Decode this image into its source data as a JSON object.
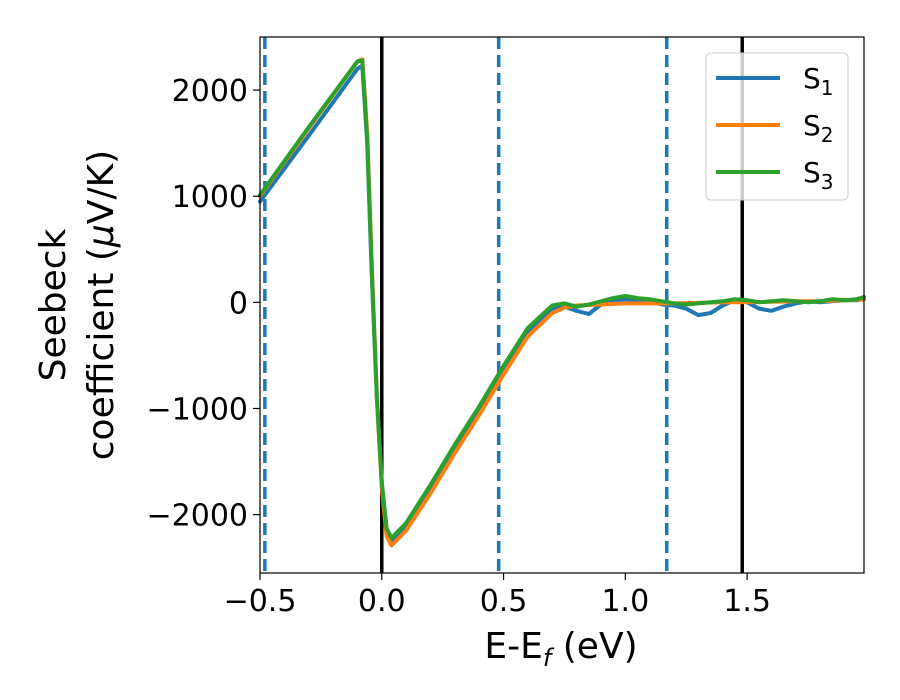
{
  "chart_data": {
    "type": "line",
    "xlabel_main": "E-E",
    "xlabel_sub": "f",
    "xlabel_unit": " (eV)",
    "ylabel_line1": "Seebeck",
    "ylabel_line2": "coefficient  (",
    "ylabel_mu": "μ",
    "ylabel_unit": "V/K)",
    "xlim": [
      -0.5,
      1.98
    ],
    "ylim": [
      -2550,
      2500
    ],
    "xticks": [
      -0.5,
      0.0,
      0.5,
      1.0,
      1.5
    ],
    "xtick_labels": [
      "−0.5",
      "0.0",
      "0.5",
      "1.0",
      "1.5"
    ],
    "yticks": [
      2000,
      1000,
      0,
      -1000,
      -2000
    ],
    "ytick_labels": [
      "2000",
      "1000",
      "0",
      "−1000",
      "−2000"
    ],
    "legend_position": "top-right",
    "vlines_solid": [
      0.0,
      1.48
    ],
    "vlines_dashed": [
      -0.48,
      0.48,
      1.17
    ],
    "vline_solid_color": "#000000",
    "vline_dashed_color": "#1f77b4",
    "series": [
      {
        "name": "S",
        "sub": "1",
        "color": "#1f77b4",
        "x": [
          -0.5,
          -0.3,
          -0.1,
          -0.08,
          -0.06,
          -0.04,
          -0.02,
          0.0,
          0.02,
          0.04,
          0.1,
          0.2,
          0.3,
          0.4,
          0.5,
          0.6,
          0.7,
          0.75,
          0.8,
          0.85,
          0.9,
          0.95,
          1.0,
          1.05,
          1.1,
          1.15,
          1.2,
          1.25,
          1.3,
          1.35,
          1.4,
          1.45,
          1.5,
          1.55,
          1.6,
          1.65,
          1.7,
          1.75,
          1.8,
          1.85,
          1.9,
          1.95,
          1.98
        ],
        "y": [
          950,
          1570,
          2200,
          2230,
          1500,
          200,
          -900,
          -1700,
          -2150,
          -2270,
          -2120,
          -1760,
          -1380,
          -1020,
          -640,
          -280,
          -60,
          -40,
          -80,
          -110,
          -20,
          20,
          30,
          20,
          10,
          -20,
          -30,
          -60,
          -120,
          -100,
          -30,
          20,
          0,
          -60,
          -80,
          -40,
          -10,
          10,
          0,
          10,
          20,
          20,
          30
        ]
      },
      {
        "name": "S",
        "sub": "2",
        "color": "#ff7f0e",
        "x": [
          -0.5,
          -0.3,
          -0.1,
          -0.08,
          -0.06,
          -0.04,
          -0.02,
          0.0,
          0.02,
          0.04,
          0.1,
          0.2,
          0.3,
          0.4,
          0.5,
          0.6,
          0.7,
          0.75,
          0.8,
          0.9,
          1.0,
          1.1,
          1.2,
          1.3,
          1.4,
          1.5,
          1.6,
          1.7,
          1.8,
          1.9,
          1.98
        ],
        "y": [
          1000,
          1640,
          2270,
          2290,
          1600,
          300,
          -900,
          -1750,
          -2200,
          -2290,
          -2150,
          -1800,
          -1420,
          -1060,
          -680,
          -320,
          -100,
          -50,
          -30,
          -20,
          -10,
          -10,
          -10,
          -5,
          0,
          0,
          5,
          10,
          10,
          20,
          30
        ]
      },
      {
        "name": "S",
        "sub": "3",
        "color": "#2ca02c",
        "x": [
          -0.5,
          -0.3,
          -0.1,
          -0.08,
          -0.06,
          -0.04,
          -0.02,
          0.0,
          0.02,
          0.04,
          0.1,
          0.2,
          0.3,
          0.4,
          0.5,
          0.6,
          0.7,
          0.75,
          0.8,
          0.85,
          0.9,
          0.95,
          1.0,
          1.05,
          1.1,
          1.15,
          1.2,
          1.25,
          1.3,
          1.35,
          1.4,
          1.45,
          1.5,
          1.55,
          1.6,
          1.65,
          1.7,
          1.75,
          1.8,
          1.85,
          1.9,
          1.95,
          1.98
        ],
        "y": [
          1010,
          1650,
          2270,
          2280,
          1550,
          250,
          -900,
          -1700,
          -2130,
          -2220,
          -2080,
          -1720,
          -1340,
          -980,
          -600,
          -240,
          -30,
          -10,
          -40,
          -20,
          10,
          40,
          60,
          40,
          30,
          10,
          -10,
          -20,
          -10,
          0,
          10,
          30,
          20,
          0,
          10,
          20,
          10,
          0,
          10,
          30,
          20,
          30,
          50
        ]
      }
    ]
  }
}
